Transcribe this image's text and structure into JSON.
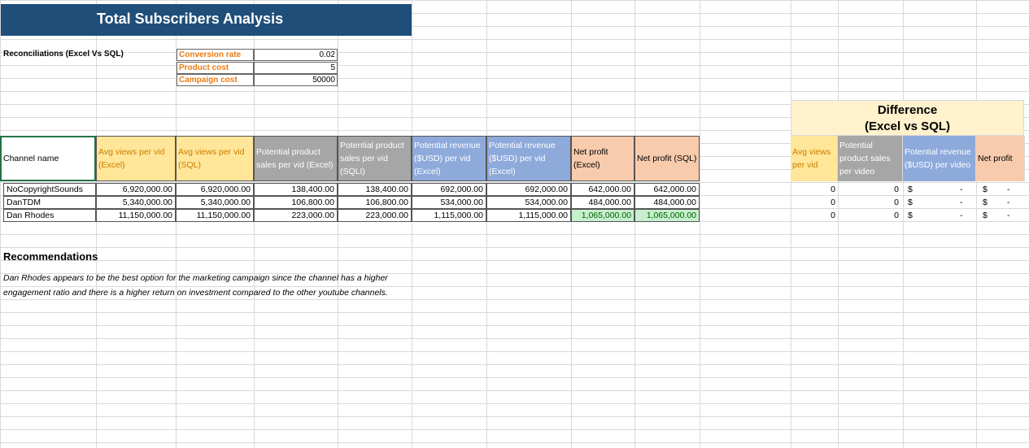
{
  "title": "Total Subscribers Analysis",
  "reconciliation_label": "Reconciliations (Excel Vs SQL)",
  "parameters": [
    {
      "label": "Conversion rate",
      "value": "0.02"
    },
    {
      "label": "Product cost",
      "value": "5"
    },
    {
      "label": "Campaign cost",
      "value": "50000"
    }
  ],
  "headers": {
    "channel": "Channel name",
    "avg_excel": "Avg views per vid (Excel)",
    "avg_sql": "Avg views per vid (SQL)",
    "sales_excel": "Potential product sales per vid (Excel)",
    "sales_sql": "Potential product sales per vid (SQLI)",
    "rev_excel": "Potential revenue ($USD) per vid (Excel)",
    "rev_sql": "Potential revenue ($USD) per vid (Excel)",
    "profit_excel": "Net profit (Excel)",
    "profit_sql": "Net profit (SQL)"
  },
  "rows": [
    {
      "name": "NoCopyrightSounds",
      "avg_excel": "6,920,000.00",
      "avg_sql": "6,920,000.00",
      "sales_excel": "138,400.00",
      "sales_sql": "138,400.00",
      "rev_excel": "692,000.00",
      "rev_sql": "692,000.00",
      "profit_excel": "642,000.00",
      "profit_sql": "642,000.00"
    },
    {
      "name": "DanTDM",
      "avg_excel": "5,340,000.00",
      "avg_sql": "5,340,000.00",
      "sales_excel": "106,800.00",
      "sales_sql": "106,800.00",
      "rev_excel": "534,000.00",
      "rev_sql": "534,000.00",
      "profit_excel": "484,000.00",
      "profit_sql": "484,000.00"
    },
    {
      "name": "Dan Rhodes",
      "avg_excel": "11,150,000.00",
      "avg_sql": "11,150,000.00",
      "sales_excel": "223,000.00",
      "sales_sql": "223,000.00",
      "rev_excel": "1,115,000.00",
      "rev_sql": "1,115,000.00",
      "profit_excel": "1,065,000.00",
      "profit_sql": "1,065,000.00"
    }
  ],
  "difference": {
    "title_line1": "Difference",
    "title_line2": "(Excel vs SQL)",
    "headers": [
      "Avg views per vid",
      "Potential product sales per video",
      "Potential revenue ($USD) per video",
      "Net profit"
    ],
    "rows": [
      {
        "avg": "0",
        "sales": "0",
        "rev_symbol": "$",
        "rev_value": "-",
        "profit_symbol": "$",
        "profit_value": "-"
      },
      {
        "avg": "0",
        "sales": "0",
        "rev_symbol": "$",
        "rev_value": "-",
        "profit_symbol": "$",
        "profit_value": "-"
      },
      {
        "avg": "0",
        "sales": "0",
        "rev_symbol": "$",
        "rev_value": "-",
        "profit_symbol": "$",
        "profit_value": "-"
      }
    ]
  },
  "recommendations": {
    "title": "Recommendations",
    "line1": "Dan Rhodes appears to be the best option for the marketing campaign since the channel has a  higher",
    "line2": " engagement ratio and there is a higher return on investment compared to the other youtube channels."
  },
  "colors": {
    "title_bg": "#1f4e79",
    "yellow_header": "#ffe699",
    "gray_header": "#a6a6a6",
    "blue_header": "#8eaadb",
    "peach_header": "#f8cbad",
    "green_highlight": "#c6efce",
    "difference_header": "#fff2cc"
  }
}
